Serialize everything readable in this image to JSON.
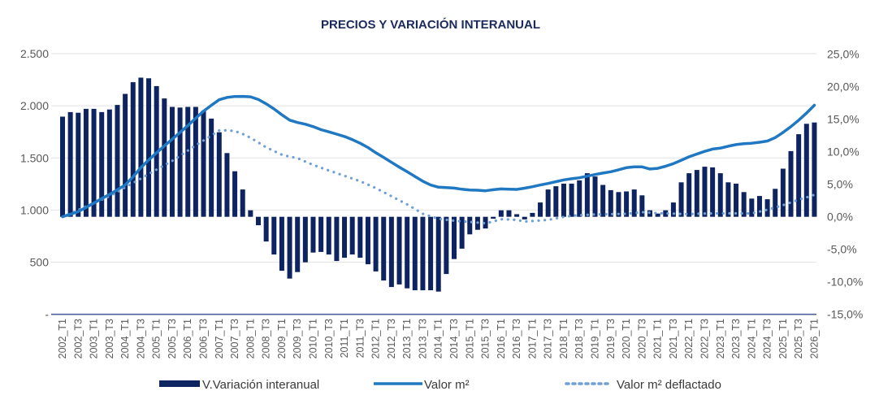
{
  "chart_data": {
    "type": "bar+line",
    "title": "PRECIOS Y VARIACIÓN INTERANUAL",
    "categories": [
      "2002_T1",
      "2002_T2",
      "2002_T3",
      "2002_T4",
      "2003_T1",
      "2003_T2",
      "2003_T3",
      "2003_T4",
      "2004_T1",
      "2004_T2",
      "2004_T3",
      "2004_T4",
      "2005_T1",
      "2005_T2",
      "2005_T3",
      "2005_T4",
      "2006_T1",
      "2006_T2",
      "2006_T3",
      "2006_T4",
      "2007_T1",
      "2007_T2",
      "2007_T3",
      "2007_T4",
      "2008_T1",
      "2008_T2",
      "2008_T3",
      "2008_T4",
      "2009_T1",
      "2009_T2",
      "2009_T3",
      "2009_T4",
      "2010_T1",
      "2010_T2",
      "2010_T3",
      "2010_T4",
      "2011_T1",
      "2011_T2",
      "2011_T3",
      "2011_T4",
      "2012_T1",
      "2012_T2",
      "2012_T3",
      "2012_T4",
      "2013_T1",
      "2013_T2",
      "2013_T3",
      "2013_T4",
      "2014_T1",
      "2014_T2",
      "2014_T3",
      "2014_T4",
      "2015_T1",
      "2015_T2",
      "2015_T3",
      "2015_T4",
      "2016_T1",
      "2016_T2",
      "2016_T3",
      "2016_T4",
      "2017_T1",
      "2017_T2",
      "2017_T3",
      "2017_T4",
      "2018_T1",
      "2018_T2",
      "2018_T3",
      "2018_T4",
      "2019_T1",
      "2019_T2",
      "2019_T3",
      "2019_T4",
      "2020_T1",
      "2020_T2",
      "2020_T3",
      "2020_T4",
      "2021_T1",
      "2021_T2",
      "2021_T3",
      "2021_T4",
      "2022_T1",
      "2022_T2",
      "2022_T3",
      "2022_T4",
      "2023_T1",
      "2023_T2",
      "2023_T3",
      "2023_T4",
      "2024_T1",
      "2024_T2",
      "2024_T3",
      "2024_T4",
      "2025_T1",
      "2025_T2",
      "2025_T3",
      "2025_T4",
      "2026_T1"
    ],
    "x_tick_labels": [
      "2002_T1",
      "2002_T3",
      "2003_T1",
      "2003_T3",
      "2004_T1",
      "2004_T3",
      "2005_T1",
      "2005_T3",
      "2006_T1",
      "2006_T3",
      "2007_T1",
      "2007_T3",
      "2008_T1",
      "2008_T3",
      "2009_T1",
      "2009_T3",
      "2010_T1",
      "2010_T3",
      "2011_T1",
      "2011_T3",
      "2012_T1",
      "2012_T3",
      "2013_T1",
      "2013_T3",
      "2014_T1",
      "2014_T3",
      "2015_T1",
      "2015_T3",
      "2016_T1",
      "2016_T3",
      "2017_T1",
      "2017_T3",
      "2018_T1",
      "2018_T3",
      "2019_T1",
      "2019_T3",
      "2020_T1",
      "2020_T3",
      "2021_T1",
      "2021_T3",
      "2022_T1",
      "2022_T3",
      "2023_T1",
      "2023_T3",
      "2024_T1",
      "2024_T3",
      "2025_T1",
      "2025_T3",
      "2026_T1"
    ],
    "y_left": {
      "range": [
        0,
        2500
      ],
      "tick_labels": [
        "-",
        "500",
        "1.000",
        "1.500",
        "2.000",
        "2.500"
      ],
      "ticks": [
        0,
        500,
        1000,
        1500,
        2000,
        2500
      ]
    },
    "y_right": {
      "range": [
        -15,
        25
      ],
      "tick_labels": [
        "-15,0%",
        "-10,0%",
        "-5,0%",
        "0,0%",
        "5,0%",
        "10,0%",
        "15,0%",
        "20,0%",
        "25,0%"
      ],
      "ticks": [
        -15,
        -10,
        -5,
        0,
        5,
        10,
        15,
        20,
        25
      ]
    },
    "grid": true,
    "legend_position": "bottom",
    "series": [
      {
        "name": "V.Variación interanual",
        "type": "bar",
        "axis": "right",
        "unit": "%",
        "color": "#0d2461",
        "values": [
          15.4,
          16.1,
          16.0,
          16.6,
          16.6,
          16.1,
          16.5,
          17.2,
          18.9,
          20.7,
          21.4,
          21.3,
          20.1,
          18.2,
          16.9,
          16.8,
          16.9,
          16.9,
          16.3,
          15.1,
          13.0,
          9.8,
          7.0,
          4.2,
          1.0,
          -1.3,
          -3.8,
          -5.8,
          -8.3,
          -9.5,
          -8.5,
          -7.0,
          -5.5,
          -5.4,
          -5.8,
          -6.8,
          -6.3,
          -5.8,
          -6.3,
          -7.3,
          -8.4,
          -9.8,
          -10.8,
          -10.4,
          -11.0,
          -11.3,
          -11.3,
          -11.3,
          -11.5,
          -8.8,
          -6.5,
          -4.9,
          -2.7,
          -2.0,
          -1.8,
          -0.3,
          1.0,
          1.0,
          0.4,
          -0.4,
          0.6,
          2.2,
          4.2,
          4.7,
          5.1,
          5.1,
          5.6,
          6.7,
          6.2,
          4.9,
          4.1,
          3.8,
          3.9,
          4.2,
          3.3,
          1.0,
          0.5,
          1.0,
          2.2,
          5.3,
          6.7,
          7.2,
          7.7,
          7.6,
          6.7,
          5.3,
          5.1,
          3.8,
          2.8,
          3.2,
          2.7,
          4.3,
          7.4,
          10.1,
          12.7,
          14.3,
          14.5
        ]
      },
      {
        "name": "Valor m²",
        "type": "line",
        "axis": "left",
        "color": "#1f78c1",
        "values": [
          936,
          960,
          985,
          1025,
          1067,
          1110,
          1150,
          1195,
          1240,
          1320,
          1406,
          1480,
          1550,
          1615,
          1680,
          1745,
          1810,
          1880,
          1948,
          2005,
          2058,
          2080,
          2089,
          2090,
          2086,
          2060,
          2019,
          1970,
          1914,
          1862,
          1840,
          1823,
          1800,
          1771,
          1750,
          1728,
          1706,
          1675,
          1641,
          1600,
          1550,
          1505,
          1458,
          1412,
          1367,
          1322,
          1277,
          1240,
          1219,
          1215,
          1211,
          1200,
          1193,
          1190,
          1185,
          1195,
          1203,
          1200,
          1198,
          1210,
          1224,
          1240,
          1255,
          1272,
          1289,
          1300,
          1310,
          1325,
          1341,
          1355,
          1367,
          1386,
          1406,
          1415,
          1414,
          1394,
          1400,
          1420,
          1445,
          1478,
          1511,
          1537,
          1563,
          1585,
          1594,
          1612,
          1628,
          1636,
          1641,
          1650,
          1662,
          1695,
          1745,
          1800,
          1862,
          1930,
          2005
        ]
      },
      {
        "name": "Valor m² deflactado",
        "type": "line-dotted",
        "axis": "left",
        "color": "#6f9fd4",
        "values": [
          936,
          966,
          1000,
          1035,
          1068,
          1100,
          1133,
          1175,
          1218,
          1260,
          1302,
          1345,
          1388,
          1430,
          1472,
          1520,
          1570,
          1620,
          1667,
          1715,
          1763,
          1765,
          1758,
          1730,
          1693,
          1648,
          1602,
          1565,
          1531,
          1512,
          1498,
          1465,
          1433,
          1406,
          1380,
          1354,
          1328,
          1302,
          1277,
          1244,
          1211,
          1172,
          1133,
          1094,
          1055,
          1010,
          964,
          940,
          917,
          907,
          898,
          892,
          886,
          880,
          873,
          890,
          912,
          910,
          905,
          890,
          895,
          900,
          906,
          920,
          935,
          945,
          951,
          955,
          958,
          960,
          961,
          963,
          964,
          972,
          980,
          975,
          970,
          968,
          966,
          963,
          961,
          964,
          967,
          968,
          969,
          968,
          968,
          968,
          968,
          985,
          1003,
          1025,
          1047,
          1073,
          1099,
          1122,
          1146
        ]
      }
    ]
  }
}
